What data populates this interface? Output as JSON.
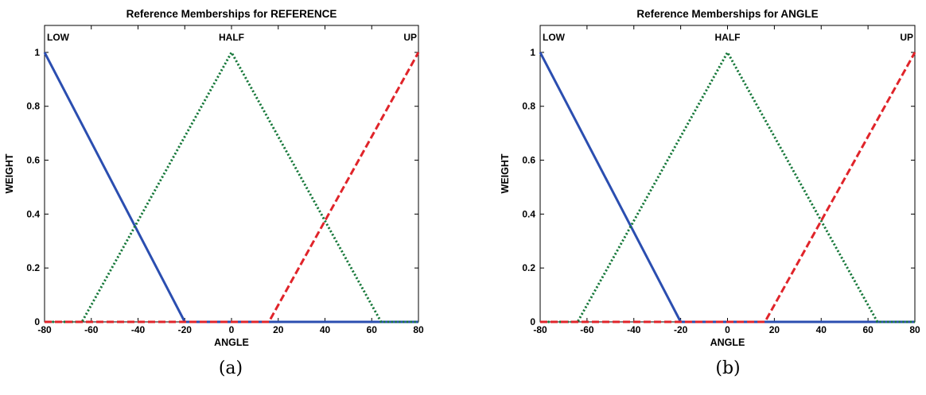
{
  "chart_data": [
    {
      "type": "line",
      "title": "Reference Memberships for REFERENCE",
      "xlabel": "ANGLE",
      "ylabel": "WEIGHT",
      "xlim": [
        -80,
        80
      ],
      "ylim": [
        0,
        1.1
      ],
      "xticks": [
        -80,
        -60,
        -40,
        -20,
        0,
        20,
        40,
        60,
        80
      ],
      "yticks": [
        0,
        0.2,
        0.4,
        0.6,
        0.8,
        1
      ],
      "grid": false,
      "caption": "(a)",
      "series": [
        {
          "name": "LOW",
          "color": "#2b4eb0",
          "style": "solid",
          "x": [
            -80,
            -20,
            80
          ],
          "y": [
            1,
            0,
            0
          ]
        },
        {
          "name": "HALF",
          "color": "#16783a",
          "style": "dotted",
          "x": [
            -80,
            -64,
            0,
            64,
            80
          ],
          "y": [
            0,
            0,
            1,
            0,
            0
          ]
        },
        {
          "name": "UP",
          "color": "#e0242a",
          "style": "dashed",
          "x": [
            -80,
            16,
            80
          ],
          "y": [
            0,
            0,
            1
          ]
        }
      ],
      "annotations": [
        {
          "text": "LOW",
          "x": -80,
          "y": 1.05,
          "anchor": "start"
        },
        {
          "text": "HALF",
          "x": 0,
          "y": 1.05,
          "anchor": "middle"
        },
        {
          "text": "UP",
          "x": 80,
          "y": 1.05,
          "anchor": "end"
        }
      ]
    },
    {
      "type": "line",
      "title": "Reference Memberships for ANGLE",
      "xlabel": "ANGLE",
      "ylabel": "WEIGHT",
      "xlim": [
        -80,
        80
      ],
      "ylim": [
        0,
        1.1
      ],
      "xticks": [
        -80,
        -60,
        -40,
        -20,
        0,
        20,
        40,
        60,
        80
      ],
      "yticks": [
        0,
        0.2,
        0.4,
        0.6,
        0.8,
        1
      ],
      "grid": false,
      "caption": "(b)",
      "series": [
        {
          "name": "LOW",
          "color": "#2b4eb0",
          "style": "solid",
          "x": [
            -80,
            -20,
            80
          ],
          "y": [
            1,
            0,
            0
          ]
        },
        {
          "name": "HALF",
          "color": "#16783a",
          "style": "dotted",
          "x": [
            -80,
            -64,
            0,
            64,
            80
          ],
          "y": [
            0,
            0,
            1,
            0,
            0
          ]
        },
        {
          "name": "UP",
          "color": "#e0242a",
          "style": "dashed",
          "x": [
            -80,
            16,
            80
          ],
          "y": [
            0,
            0,
            1
          ]
        }
      ],
      "annotations": [
        {
          "text": "LOW",
          "x": -80,
          "y": 1.05,
          "anchor": "start"
        },
        {
          "text": "HALF",
          "x": 0,
          "y": 1.05,
          "anchor": "middle"
        },
        {
          "text": "UP",
          "x": 80,
          "y": 1.05,
          "anchor": "end"
        }
      ]
    }
  ]
}
